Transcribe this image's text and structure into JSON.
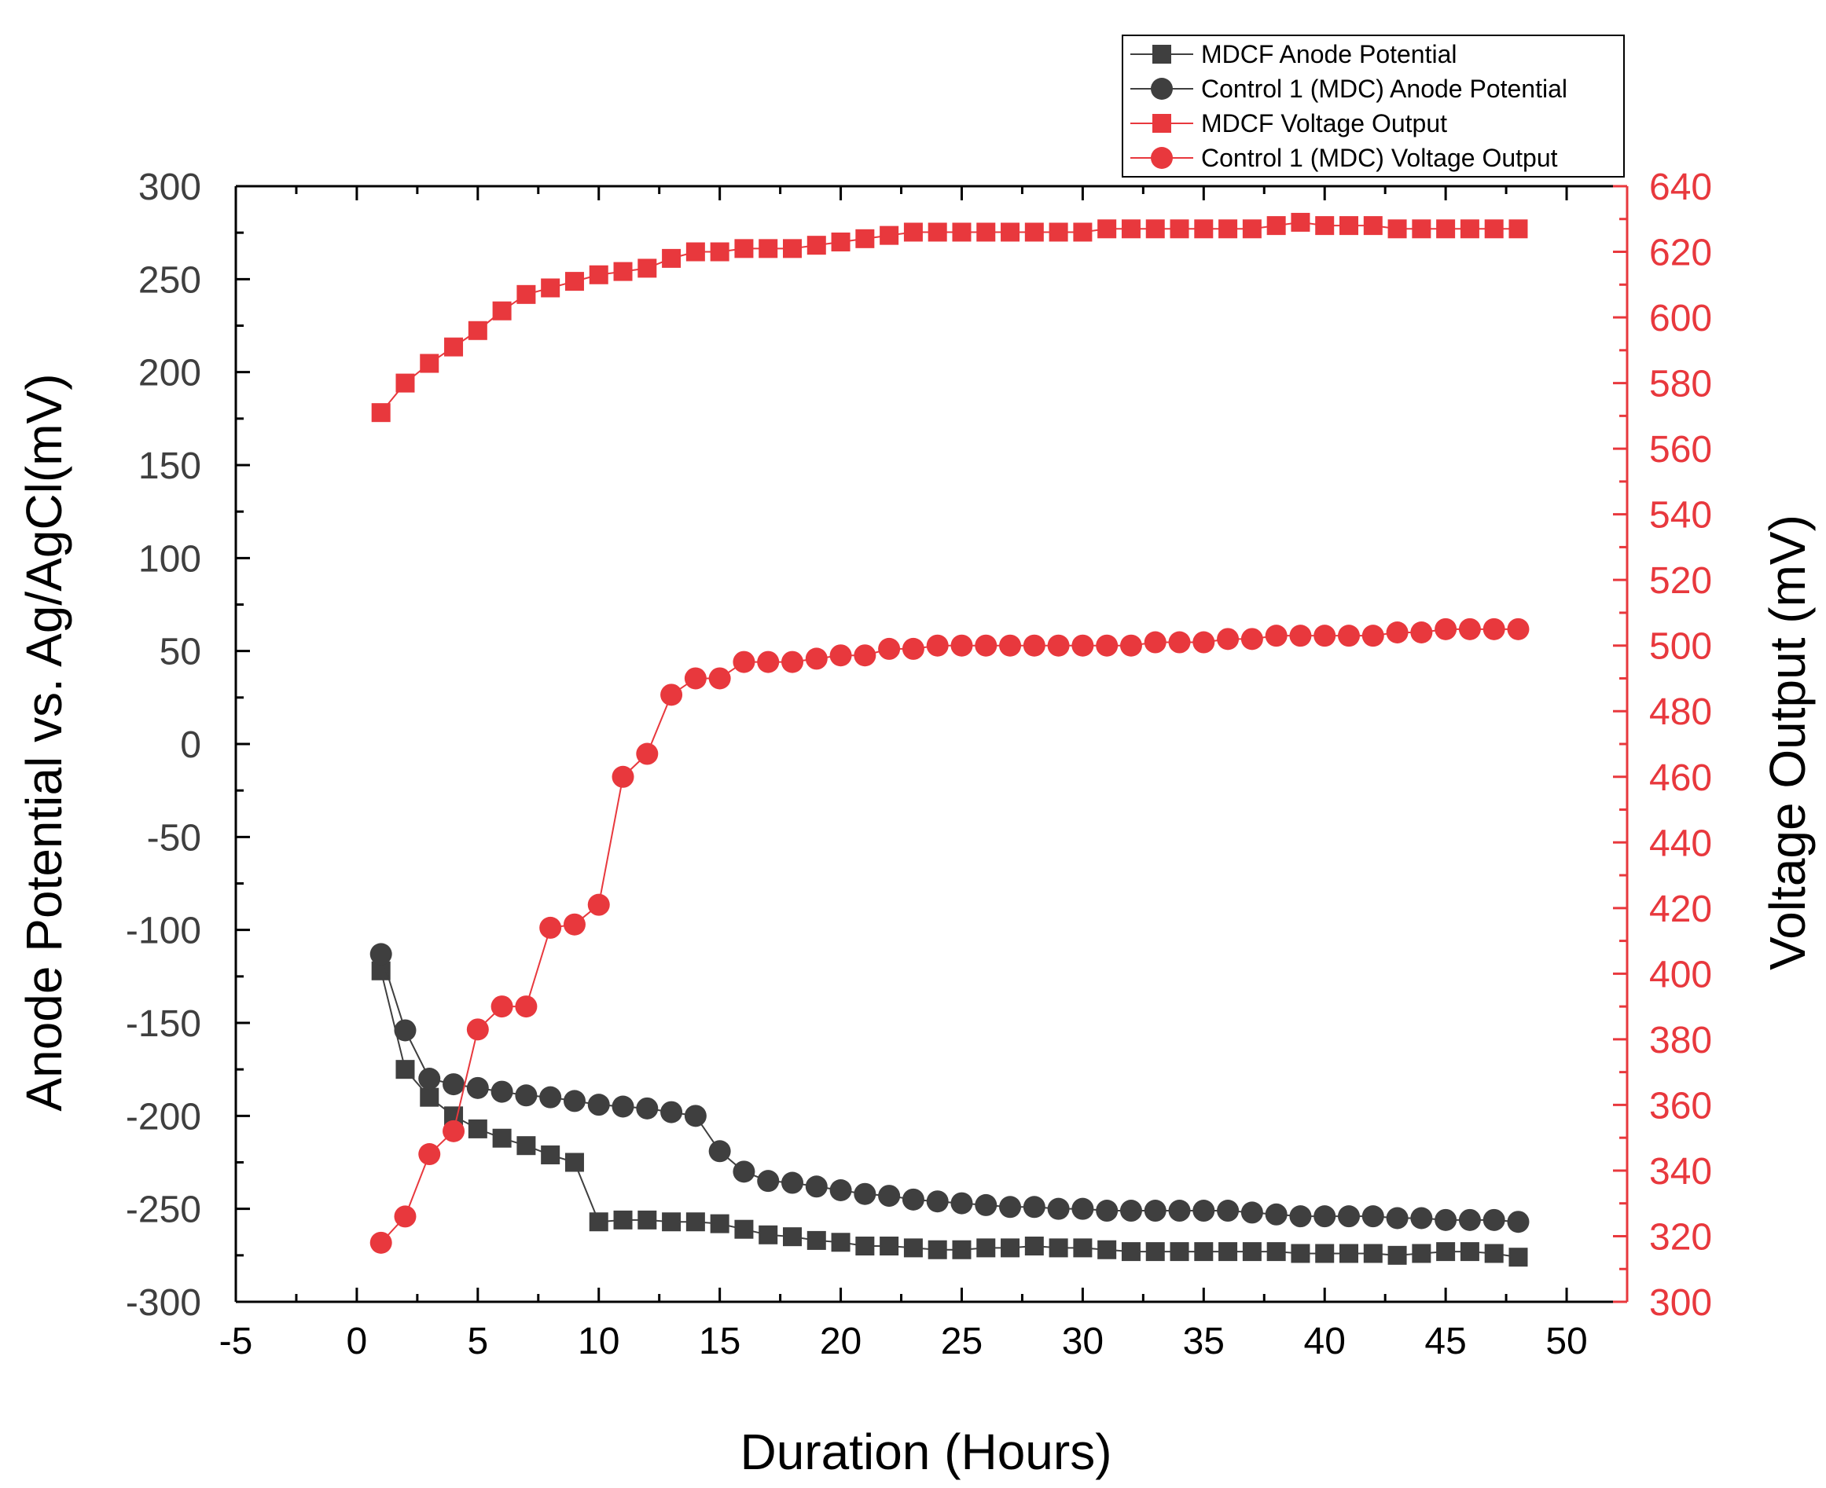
{
  "chart_data": {
    "type": "line",
    "title": "",
    "xlabel": "Duration (Hours)",
    "ylabel_left": "Anode Potential vs. Ag/AgCl(mV)",
    "ylabel_right": "Voltage Output (mV)",
    "xlim": [
      -5,
      52.5
    ],
    "ylim_left": [
      -300,
      300
    ],
    "ylim_right": [
      300,
      640
    ],
    "xticks": [
      -5,
      0,
      5,
      10,
      15,
      20,
      25,
      30,
      35,
      40,
      45,
      50
    ],
    "yticks_left": [
      300,
      250,
      200,
      150,
      100,
      50,
      0,
      -50,
      -100,
      -150,
      -200,
      -250,
      -300
    ],
    "yticks_right": [
      640,
      620,
      600,
      580,
      560,
      540,
      520,
      500,
      480,
      460,
      440,
      420,
      400,
      380,
      360,
      340,
      320,
      300
    ],
    "grid": false,
    "legend_position": "top-right",
    "colors": {
      "black": "#3f3f3f",
      "red": "#e8383d",
      "right_axis": "#e8383d"
    },
    "x": [
      1,
      2,
      3,
      4,
      5,
      6,
      7,
      8,
      9,
      10,
      11,
      12,
      13,
      14,
      15,
      16,
      17,
      18,
      19,
      20,
      21,
      22,
      23,
      24,
      25,
      26,
      27,
      28,
      29,
      30,
      31,
      32,
      33,
      34,
      35,
      36,
      37,
      38,
      39,
      40,
      41,
      42,
      43,
      44,
      45,
      46,
      47,
      48
    ],
    "series": [
      {
        "name": "MDCF Anode Potential",
        "axis": "left",
        "marker": "square",
        "color": "#3f3f3f",
        "values": [
          -122,
          -175,
          -190,
          -200,
          -207,
          -212,
          -216,
          -221,
          -225,
          -257,
          -256,
          -256,
          -257,
          -257,
          -258,
          -261,
          -264,
          -265,
          -267,
          -268,
          -270,
          -270,
          -271,
          -272,
          -272,
          -271,
          -271,
          -270,
          -271,
          -271,
          -272,
          -273,
          -273,
          -273,
          -273,
          -273,
          -273,
          -273,
          -274,
          -274,
          -274,
          -274,
          -275,
          -274,
          -273,
          -273,
          -274,
          -276
        ]
      },
      {
        "name": "Control 1 (MDC) Anode Potential",
        "axis": "left",
        "marker": "circle",
        "color": "#3f3f3f",
        "values": [
          -113,
          -154,
          -180,
          -183,
          -185,
          -187,
          -189,
          -190,
          -192,
          -194,
          -195,
          -196,
          -198,
          -200,
          -219,
          -230,
          -235,
          -236,
          -238,
          -240,
          -242,
          -243,
          -245,
          -246,
          -247,
          -248,
          -249,
          -249,
          -250,
          -250,
          -251,
          -251,
          -251,
          -251,
          -251,
          -251,
          -252,
          -253,
          -254,
          -254,
          -254,
          -254,
          -255,
          -255,
          -256,
          -256,
          -256,
          -257
        ]
      },
      {
        "name": "MDCF Voltage Output",
        "axis": "right",
        "marker": "square",
        "color": "#e8383d",
        "values": [
          571,
          580,
          586,
          591,
          596,
          602,
          607,
          609,
          611,
          613,
          614,
          615,
          618,
          620,
          620,
          621,
          621,
          621,
          622,
          623,
          624,
          625,
          626,
          626,
          626,
          626,
          626,
          626,
          626,
          626,
          627,
          627,
          627,
          627,
          627,
          627,
          627,
          628,
          629,
          628,
          628,
          628,
          627,
          627,
          627,
          627,
          627,
          627
        ]
      },
      {
        "name": "Control 1 (MDC) Voltage Output",
        "axis": "right",
        "marker": "circle",
        "color": "#e8383d",
        "values": [
          318,
          326,
          345,
          352,
          383,
          390,
          390,
          414,
          415,
          421,
          460,
          467,
          485,
          490,
          490,
          495,
          495,
          495,
          496,
          497,
          497,
          499,
          499,
          500,
          500,
          500,
          500,
          500,
          500,
          500,
          500,
          500,
          501,
          501,
          501,
          502,
          502,
          503,
          503,
          503,
          503,
          503,
          504,
          504,
          505,
          505,
          505,
          505
        ]
      }
    ]
  }
}
